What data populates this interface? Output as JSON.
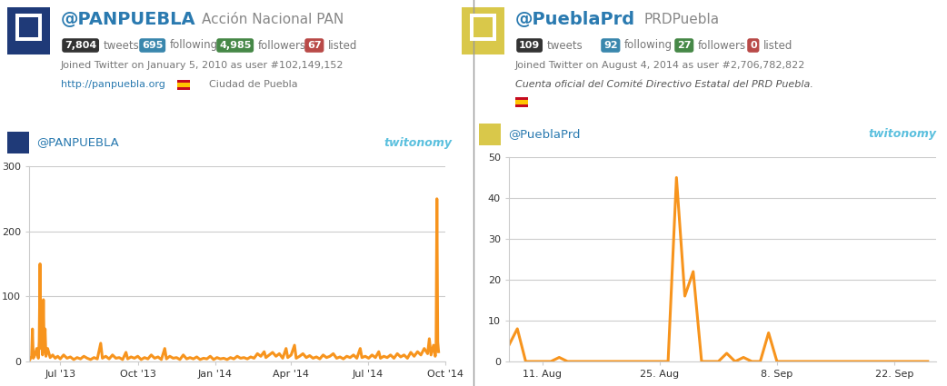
{
  "chart_data": [
    {
      "type": "line",
      "title": "@PANPUEBLA",
      "annotations": [
        "twitonomy"
      ],
      "color": "#f7941d",
      "x": [
        -36,
        -34,
        -33,
        -32,
        -30,
        -28,
        -26,
        -25,
        -24,
        -23,
        -22,
        -21,
        -20,
        -19,
        -18,
        -17,
        -15,
        -12,
        -9,
        -6,
        -3,
        0,
        4,
        8,
        12,
        16,
        20,
        24,
        28,
        32,
        36,
        40,
        44,
        48,
        50,
        54,
        58,
        62,
        66,
        70,
        74,
        78,
        80,
        84,
        88,
        92,
        96,
        100,
        104,
        108,
        112,
        116,
        120,
        124,
        126,
        130,
        134,
        138,
        142,
        146,
        150,
        154,
        158,
        162,
        166,
        170,
        174,
        178,
        182,
        186,
        190,
        194,
        198,
        202,
        206,
        210,
        214,
        218,
        222,
        226,
        230,
        234,
        238,
        242,
        244,
        248,
        252,
        256,
        260,
        264,
        268,
        270,
        274,
        278,
        280,
        284,
        288,
        292,
        296,
        300,
        304,
        308,
        312,
        316,
        320,
        324,
        328,
        332,
        336,
        340,
        344,
        348,
        352,
        356,
        358,
        362,
        366,
        370,
        374,
        378,
        380,
        384,
        388,
        392,
        396,
        400,
        404,
        408,
        412,
        416,
        420,
        424,
        428,
        432,
        436,
        438,
        440,
        443,
        445,
        446,
        447,
        448,
        449
      ],
      "values": [
        3,
        8,
        50,
        5,
        10,
        20,
        5,
        30,
        150,
        20,
        60,
        10,
        95,
        15,
        50,
        8,
        20,
        6,
        10,
        5,
        8,
        4,
        10,
        5,
        7,
        3,
        6,
        4,
        8,
        5,
        3,
        6,
        4,
        28,
        5,
        8,
        4,
        10,
        5,
        6,
        3,
        14,
        4,
        7,
        5,
        8,
        3,
        6,
        4,
        10,
        5,
        7,
        3,
        20,
        4,
        8,
        5,
        6,
        3,
        10,
        4,
        6,
        4,
        7,
        3,
        5,
        4,
        8,
        3,
        6,
        4,
        5,
        3,
        6,
        4,
        8,
        5,
        6,
        4,
        7,
        5,
        12,
        8,
        15,
        6,
        10,
        14,
        8,
        12,
        5,
        20,
        6,
        10,
        25,
        5,
        8,
        12,
        6,
        9,
        5,
        7,
        4,
        10,
        6,
        8,
        12,
        5,
        7,
        4,
        8,
        6,
        10,
        5,
        20,
        6,
        8,
        5,
        10,
        6,
        15,
        5,
        8,
        6,
        10,
        5,
        12,
        7,
        10,
        5,
        14,
        8,
        15,
        10,
        20,
        12,
        35,
        10,
        25,
        8,
        20,
        250,
        30,
        15
      ],
      "xlim": [
        -37,
        457
      ],
      "xticks": [
        {
          "value": 0,
          "label": "Jul '13"
        },
        {
          "value": 92,
          "label": "Oct '13"
        },
        {
          "value": 184,
          "label": "Jan '14"
        },
        {
          "value": 274,
          "label": "Apr '14"
        },
        {
          "value": 365,
          "label": "Jul '14"
        },
        {
          "value": 457,
          "label": "Oct '14"
        }
      ],
      "ylim": [
        0,
        300
      ],
      "yticks": [
        0,
        100,
        200,
        300
      ],
      "grid": true
    },
    {
      "type": "line",
      "title": "@PueblaPrd",
      "annotations": [
        "twitonomy"
      ],
      "color": "#f7941d",
      "x": [
        7,
        8,
        9,
        10,
        11,
        12,
        13,
        14,
        15,
        16,
        17,
        18,
        19,
        20,
        21,
        22,
        23,
        24,
        25,
        26,
        27,
        28,
        29,
        30,
        31,
        32,
        33,
        34,
        35,
        36,
        37,
        38,
        39,
        40,
        41,
        42,
        43,
        44,
        45,
        46,
        47,
        48,
        49,
        50,
        51,
        52,
        53,
        54,
        55,
        56,
        57
      ],
      "values": [
        4,
        8,
        0,
        0,
        0,
        0,
        1,
        0,
        0,
        0,
        0,
        0,
        0,
        0,
        0,
        0,
        0,
        0,
        0,
        0,
        45,
        16,
        22,
        0,
        0,
        0,
        2,
        0,
        1,
        0,
        0,
        7,
        0,
        0,
        0,
        0,
        0,
        0,
        0,
        0,
        0,
        0,
        0,
        0,
        0,
        0,
        0,
        0,
        0,
        0,
        0
      ],
      "xlim": [
        7,
        58
      ],
      "xticks": [
        {
          "value": 11,
          "label": "11. Aug"
        },
        {
          "value": 25,
          "label": "25. Aug"
        },
        {
          "value": 39,
          "label": "8. Sep"
        },
        {
          "value": 53,
          "label": "22. Sep"
        }
      ],
      "ylim": [
        0,
        50
      ],
      "yticks": [
        0,
        10,
        20,
        30,
        40,
        50
      ],
      "grid": true
    }
  ],
  "profiles": [
    {
      "handle": "@PANPUEBLA",
      "name": "Acción Nacional PAN",
      "stats": [
        {
          "value": "7,804",
          "label": "tweets"
        },
        {
          "value": "695",
          "label": "following"
        },
        {
          "value": "4,985",
          "label": "followers"
        },
        {
          "value": "67",
          "label": "listed"
        }
      ],
      "joined": "Joined Twitter on January 5, 2010 as user #102,149,152",
      "url": "http://panpuebla.org",
      "location": "Ciudad de Puebla"
    },
    {
      "handle": "@PueblaPrd",
      "name": "PRDPuebla",
      "stats": [
        {
          "value": "109",
          "label": "tweets"
        },
        {
          "value": "92",
          "label": "following"
        },
        {
          "value": "27",
          "label": "followers"
        },
        {
          "value": "0",
          "label": "listed"
        }
      ],
      "joined": "Joined Twitter on August 4, 2014 as user #2,706,782,822",
      "description": "Cuenta oficial del Comité Directivo Estatal del PRD Puebla."
    }
  ]
}
